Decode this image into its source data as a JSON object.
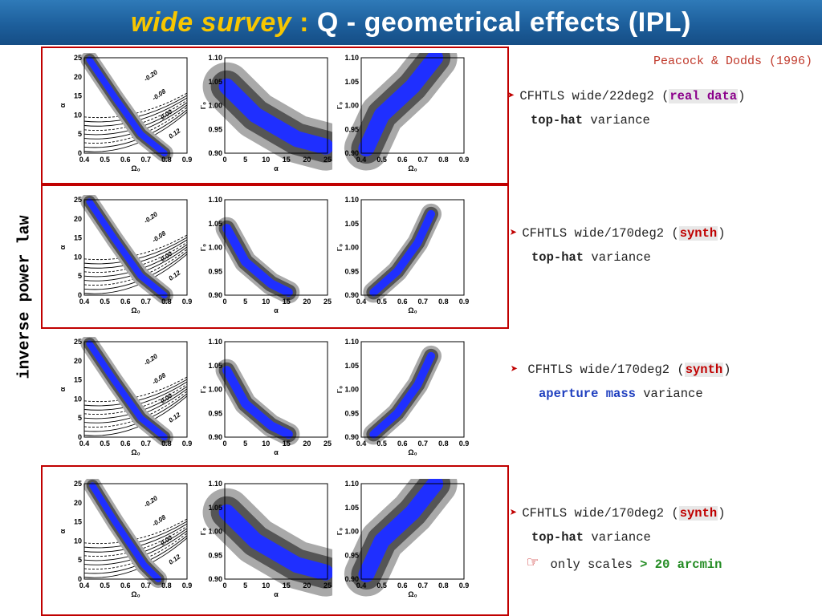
{
  "title": {
    "highlight": "wide survey",
    "colon": " :",
    "rest": " Q - geometrical effects (IPL)"
  },
  "side_label": "inverse power law",
  "reference": "Peacock & Dodds (1996)",
  "rows": [
    {
      "line1_prefix": "CFHTLS wide/22deg2 (",
      "line1_key": "real data",
      "line1_suffix": ")",
      "line2_key": "top-hat",
      "line2_rest": " variance",
      "bullet": "➤"
    },
    {
      "line1_prefix": "CFHTLS wide/170deg2 (",
      "line1_key": "synth",
      "line1_suffix": ")",
      "line2_key": "top-hat",
      "line2_rest": " variance",
      "bullet": "➤"
    },
    {
      "line1_prefix": "CFHTLS wide/170deg2 (",
      "line1_key": "synth",
      "line1_suffix": ")",
      "line2_key": "aperture mass",
      "line2_rest": " variance",
      "bullet": "➤"
    },
    {
      "line1_prefix": "CFHTLS wide/170deg2 (",
      "line1_key": "synth",
      "line1_suffix": ")",
      "line2_key": "top-hat",
      "line2_rest": " variance",
      "bullet": "➤",
      "line3_icon": "☞",
      "line3_text": " only scales ",
      "line3_key": "> 20 arcmin"
    }
  ],
  "plots": {
    "col1": {
      "ylabel": "α",
      "xlabel": "Ω₀",
      "yticks": [
        "25",
        "20",
        "15",
        "10",
        "5",
        "0"
      ],
      "xticks": [
        "0.4",
        "0.5",
        "0.6",
        "0.7",
        "0.8",
        "0.9"
      ],
      "contour_labels": [
        "-0.20",
        "-0.08",
        "0.00",
        "0.12"
      ]
    },
    "col2": {
      "ylabel": "Γ₀",
      "xlabel": "α",
      "yticks": [
        "1.10",
        "1.05",
        "1.00",
        "0.95",
        "0.90"
      ],
      "xticks": [
        "0",
        "5",
        "10",
        "15",
        "20",
        "25"
      ]
    },
    "col3": {
      "ylabel": "Γ₀",
      "xlabel": "Ω₀",
      "yticks": [
        "1.10",
        "1.05",
        "1.00",
        "0.95",
        "0.90"
      ],
      "xticks": [
        "0.4",
        "0.5",
        "0.6",
        "0.7",
        "0.8",
        "0.9"
      ]
    }
  },
  "colors": {
    "title_bg": "#1d5f9c",
    "title_accent": "#f7c600",
    "frame": "#c00000",
    "blue": "#1f2fff",
    "dark_gray": "#555555",
    "light_gray": "#a9a9a9"
  }
}
